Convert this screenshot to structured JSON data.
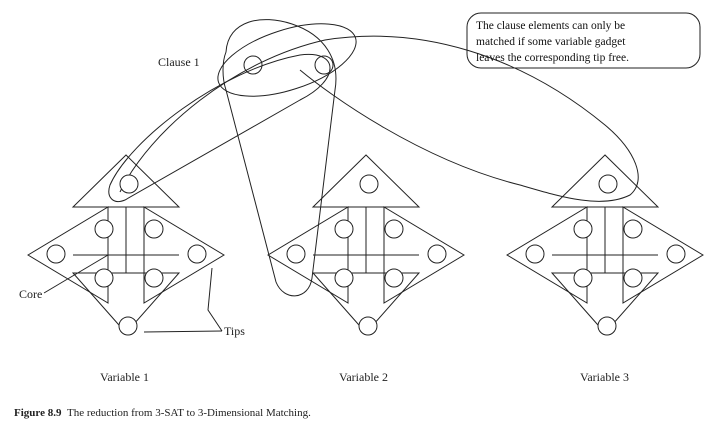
{
  "diagram": {
    "clause_label": "Clause 1",
    "note_lines": [
      "The clause elements can only be",
      "matched if some variable gadget",
      "leaves the corresponding tip free."
    ],
    "variables": [
      {
        "label": "Variable 1"
      },
      {
        "label": "Variable 2"
      },
      {
        "label": "Variable 3"
      }
    ],
    "core_label": "Core",
    "tips_label": "Tips"
  },
  "caption": {
    "figure_number": "Figure 8.9",
    "text": "The reduction from 3-SAT to 3-Dimensional Matching."
  }
}
